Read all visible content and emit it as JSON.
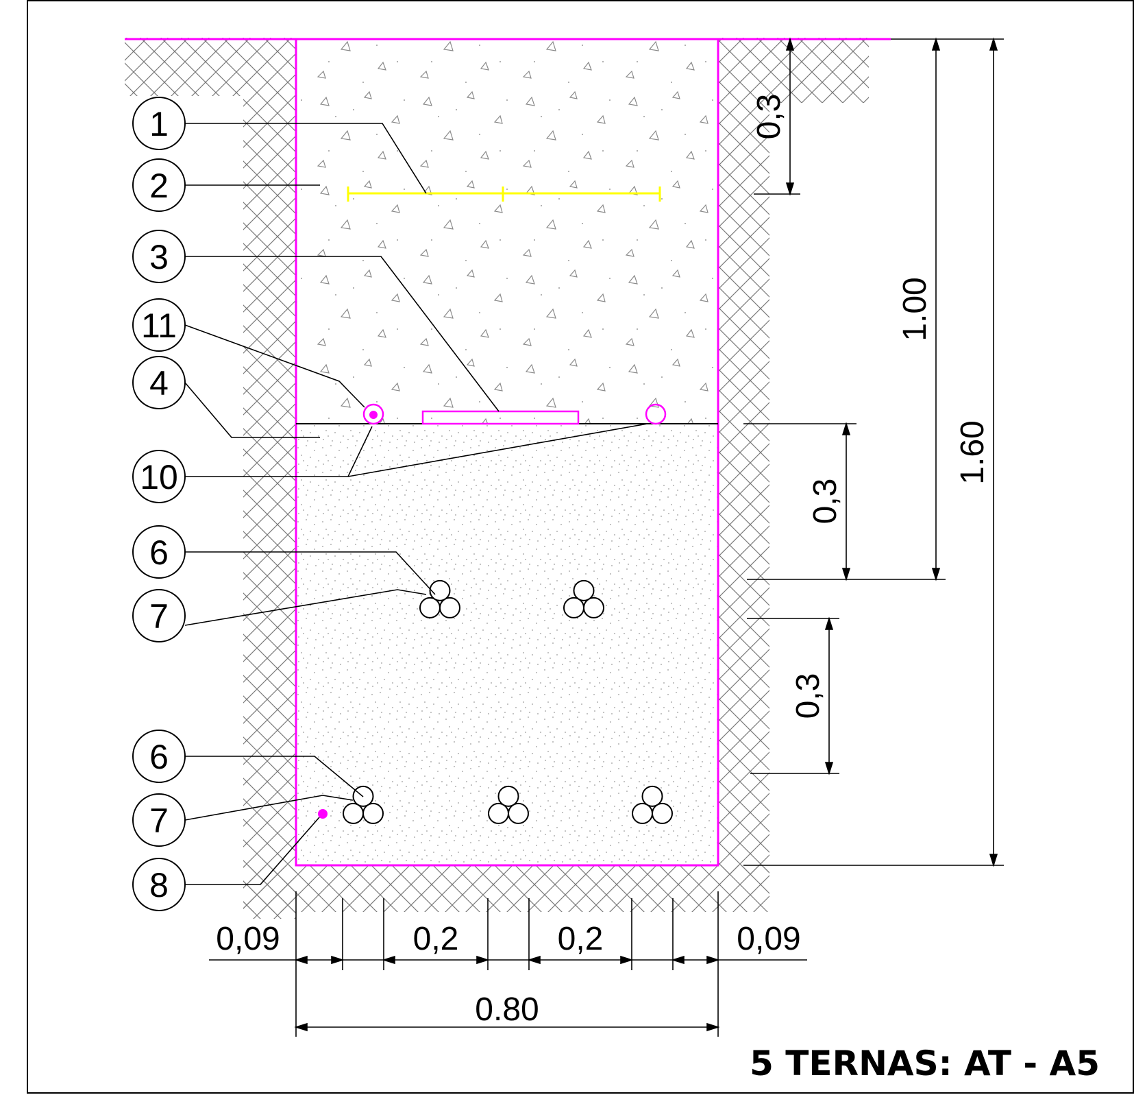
{
  "title": "5 TERNAS: AT - A5",
  "callouts": [
    {
      "id": "c1",
      "label": "1"
    },
    {
      "id": "c2",
      "label": "2"
    },
    {
      "id": "c3",
      "label": "3"
    },
    {
      "id": "c11",
      "label": "11"
    },
    {
      "id": "c4",
      "label": "4"
    },
    {
      "id": "c10",
      "label": "10"
    },
    {
      "id": "c6a",
      "label": "6"
    },
    {
      "id": "c7a",
      "label": "7"
    },
    {
      "id": "c6b",
      "label": "6"
    },
    {
      "id": "c7b",
      "label": "7"
    },
    {
      "id": "c8",
      "label": "8"
    }
  ],
  "dimensions": {
    "top_cover": "0,3",
    "middle_upper": "0,3",
    "middle_lower": "0,3",
    "depth_to_upper_row": "1.00",
    "total_depth": "1.60",
    "side_left": "0,09",
    "spacing_left": "0,2",
    "spacing_right": "0,2",
    "side_right": "0,09",
    "total_width": "0.80"
  },
  "colors": {
    "trench_outline": "#ff00ff",
    "warning_tape": "#ffff00",
    "lines": "#000000",
    "hatch": "#7a7a7a",
    "fill_dots": "#9a9a9a"
  }
}
